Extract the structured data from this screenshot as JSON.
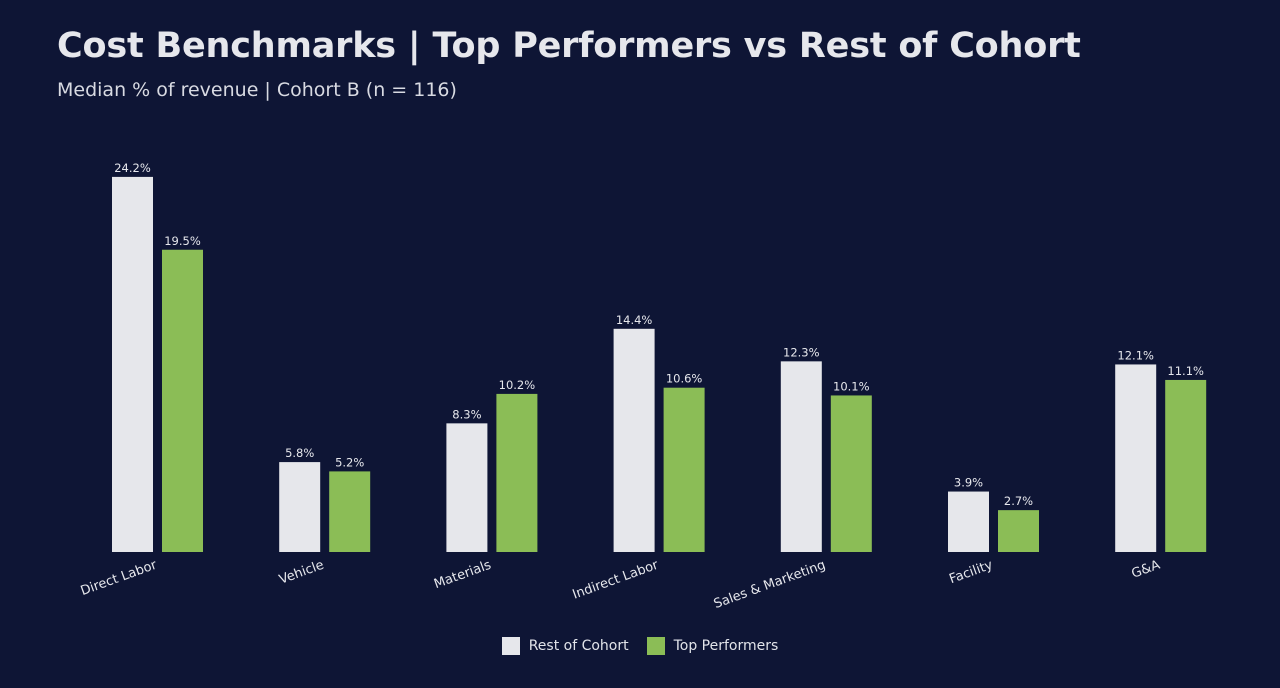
{
  "header": {
    "title": "Cost Benchmarks | Top Performers vs Rest of Cohort",
    "subtitle": "Median % of revenue | Cohort B (n = 116)"
  },
  "colors": {
    "background": "#0e1535",
    "rest": "#e6e7eb",
    "top": "#8bbd56",
    "text": "#e6e7ec"
  },
  "chart_data": {
    "type": "bar",
    "categories": [
      "Direct Labor",
      "Vehicle",
      "Materials",
      "Indirect Labor",
      "Sales & Marketing",
      "Facility",
      "G&A"
    ],
    "series": [
      {
        "name": "Rest of Cohort",
        "values": [
          24.2,
          5.8,
          8.3,
          14.4,
          12.3,
          3.9,
          12.1
        ],
        "labels": [
          "24.2%",
          "5.8%",
          "8.3%",
          "14.4%",
          "12.3%",
          "3.9%",
          "12.1%"
        ]
      },
      {
        "name": "Top Performers",
        "values": [
          19.5,
          5.2,
          10.2,
          10.6,
          10.1,
          2.7,
          11.1
        ],
        "labels": [
          "19.5%",
          "5.2%",
          "10.2%",
          "10.6%",
          "10.1%",
          "2.7%",
          "11.1%"
        ]
      }
    ],
    "grid": false,
    "legend_position": "bottom-center"
  }
}
